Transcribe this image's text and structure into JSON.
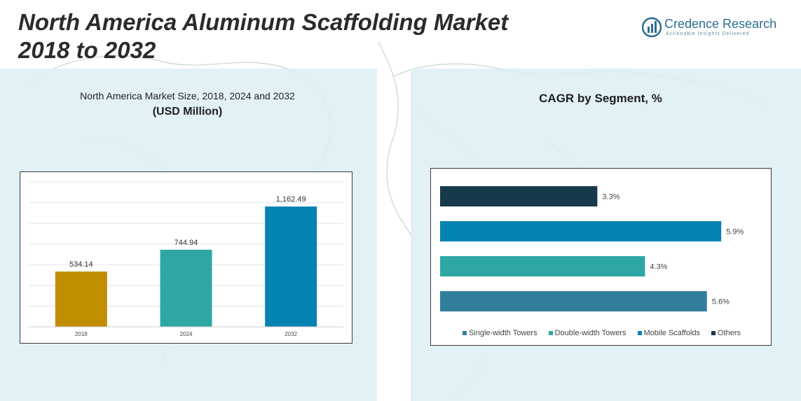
{
  "title": "North America Aluminum Scaffolding Market\n2018 to 2032",
  "logo": {
    "name": "Credence Research",
    "tagline": "Actionable Insights Delivered",
    "icon": "bar-chart-icon"
  },
  "colors": {
    "panel": "#ddeef3",
    "gold": "#c18e00",
    "teal": "#2ea6a4",
    "blue": "#0583b1",
    "steel": "#327f9d",
    "navy": "#163a4b"
  },
  "left_panel": {
    "title": "North America Market Size, 2018, 2024 and 2032",
    "subtitle": "(USD Million)"
  },
  "right_panel": {
    "title": "CAGR by Segment, %"
  },
  "chart_data": [
    {
      "type": "bar",
      "title": "North America Market Size, 2018, 2024 and 2032",
      "ylabel": "",
      "xlabel": "",
      "categories": [
        "2018",
        "2024",
        "2032"
      ],
      "values": [
        534.14,
        744.94,
        1162.49
      ],
      "value_labels": [
        "534.14",
        "744.94",
        "1,162.49"
      ],
      "colors": [
        "#c18e00",
        "#2ea6a4",
        "#0583b1"
      ],
      "ylim": [
        0,
        1400
      ],
      "grid": true
    },
    {
      "type": "bar",
      "orientation": "horizontal",
      "title": "CAGR by Segment, %",
      "categories": [
        "Others",
        "Mobile Scaffolds",
        "Double-width Towers",
        "Single-width Towers"
      ],
      "values": [
        3.3,
        5.9,
        4.3,
        5.6
      ],
      "value_labels": [
        "3.3%",
        "5.9%",
        "4.3%",
        "5.6%"
      ],
      "colors": [
        "#163a4b",
        "#0583b1",
        "#2ea6a4",
        "#327f9d"
      ],
      "xlim": [
        0,
        6.5
      ],
      "legend": {
        "placement": "bottom",
        "entries": [
          {
            "name": "Single-width Towers",
            "color": "#327f9d"
          },
          {
            "name": "Double-width Towers",
            "color": "#2ea6a4"
          },
          {
            "name": "Mobile Scaffolds",
            "color": "#0583b1"
          },
          {
            "name": "Others",
            "color": "#163a4b"
          }
        ]
      }
    }
  ]
}
